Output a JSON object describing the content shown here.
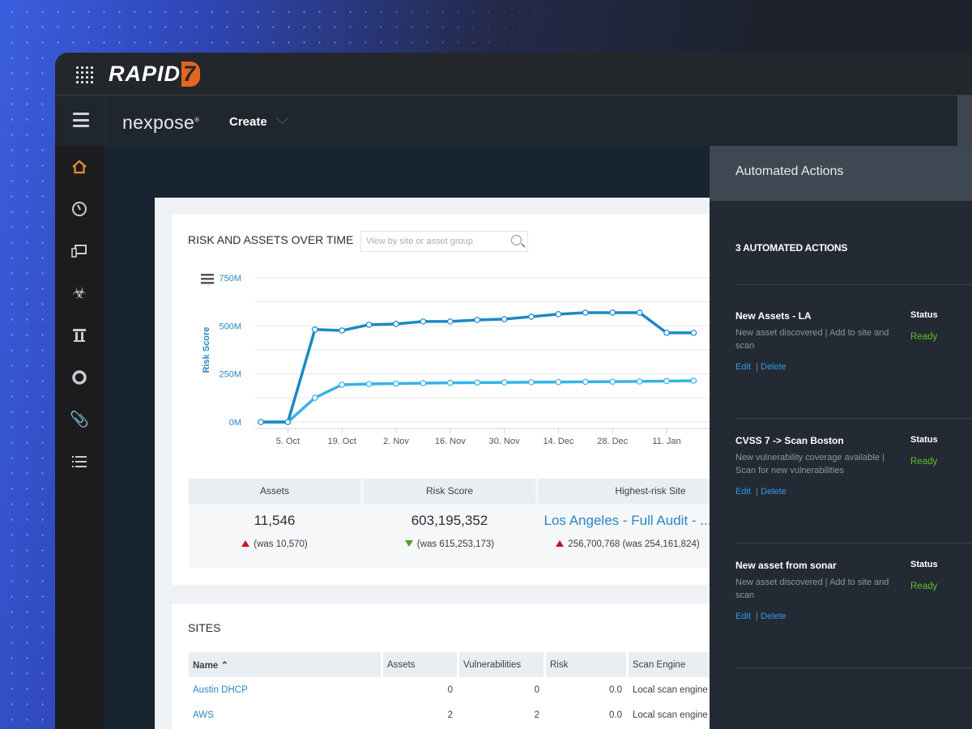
{
  "brand": {
    "logo_text": "RAPID",
    "logo_mark": "7",
    "product": "nexpose"
  },
  "nav": {
    "create_label": "Create"
  },
  "sidebar": {
    "items": [
      {
        "icon": "home-icon",
        "active": true
      },
      {
        "icon": "dashboard-gauge-icon"
      },
      {
        "icon": "assets-icon"
      },
      {
        "icon": "biohazard-vulnerabilities-icon"
      },
      {
        "icon": "policies-pillar-icon"
      },
      {
        "icon": "remediation-circle-icon"
      },
      {
        "icon": "reports-clip-icon"
      },
      {
        "icon": "list-icon"
      }
    ]
  },
  "colors": {
    "accent": "#e4661f",
    "risk_line": "#1a8ac4",
    "assets_line": "#36b3e6",
    "link": "#2a86c4",
    "ready": "#5fbf2a",
    "up": "#c0161c",
    "down": "#5a9e1c"
  },
  "risk_card": {
    "title": "RISK AND ASSETS OVER TIME",
    "search_placeholder": "View by site or asset group"
  },
  "chart_data": {
    "type": "line",
    "title": "",
    "ylabel": "Risk Score",
    "ylim": [
      0,
      750000000
    ],
    "y_ticks": [
      "0M",
      "250M",
      "500M",
      "750M"
    ],
    "x_tick_labels": [
      "5. Oct",
      "19. Oct",
      "2. Nov",
      "16. Nov",
      "30. Nov",
      "14. Dec",
      "28. Dec",
      "11. Jan"
    ],
    "grid": true,
    "x": [
      "28. Sep",
      "5. Oct",
      "12. Oct",
      "19. Oct",
      "26. Oct",
      "2. Nov",
      "9. Nov",
      "16. Nov",
      "23. Nov",
      "30. Nov",
      "7. Dec",
      "14. Dec",
      "21. Dec",
      "28. Dec",
      "4. Jan",
      "11. Jan",
      "18. Jan"
    ],
    "series": [
      {
        "values": [
          0,
          0,
          481000000,
          476000000,
          506000000,
          510000000,
          523000000,
          523000000,
          531000000,
          535000000,
          548000000,
          561000000,
          569000000,
          569000000,
          569000000,
          464000000,
          464000000
        ]
      },
      {
        "values": [
          0,
          0,
          126000000,
          194000000,
          198000000,
          200000000,
          202000000,
          204000000,
          205000000,
          206000000,
          207000000,
          208000000,
          209000000,
          210000000,
          211000000,
          213000000,
          215000000
        ]
      }
    ]
  },
  "stats": [
    {
      "header": "Assets",
      "value": "11,546",
      "trend": "up",
      "was": "(was 10,570)"
    },
    {
      "header": "Risk Score",
      "value": "603,195,352",
      "trend": "down",
      "was": "(was 615,253,173)"
    },
    {
      "header": "Highest-risk Site",
      "value": "Los Angeles - Full Audit - ...",
      "trend": "up",
      "was": "256,700,768 (was 254,161,824)"
    }
  ],
  "sites": {
    "title": "SITES",
    "columns": [
      "Name",
      "Assets",
      "Vulnerabilities",
      "Risk",
      "Scan Engine"
    ],
    "rows": [
      [
        "Austin DHCP",
        "0",
        "0",
        "0.0",
        "Local scan engine"
      ],
      [
        "AWS",
        "2",
        "2",
        "0.0",
        "Local scan engine"
      ]
    ]
  },
  "panel": {
    "title": "Automated Actions",
    "count_label": "3 AUTOMATED ACTIONS",
    "status_label": "Status",
    "edit_label": "Edit",
    "delete_label": "Delete",
    "actions": [
      {
        "name": "New Assets - LA",
        "desc": "New asset discovered | Add to site and scan",
        "status": "Ready"
      },
      {
        "name": "CVSS 7 -> Scan Boston",
        "desc": "New vulnerability coverage available | Scan for new vulnerabilities",
        "status": "Ready"
      },
      {
        "name": "New asset from sonar",
        "desc": "New asset discovered | Add to site and scan",
        "status": "Ready"
      }
    ]
  }
}
